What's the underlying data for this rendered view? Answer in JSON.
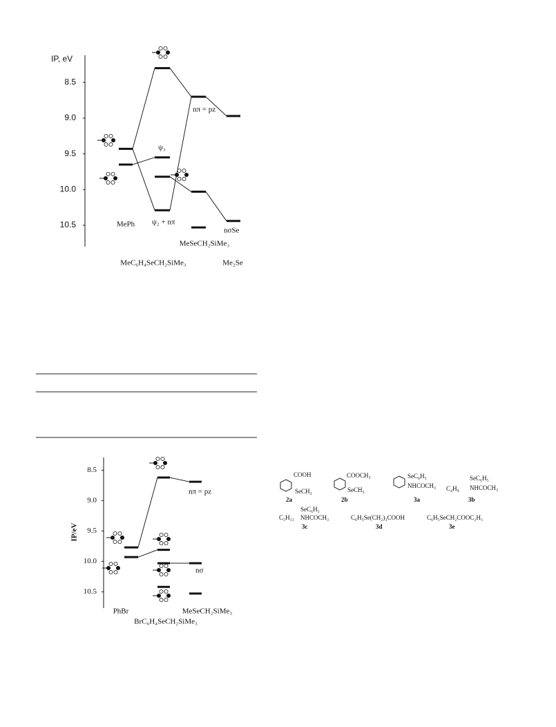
{
  "chart_data": [
    {
      "type": "energy-level",
      "y_label": "IP, eV",
      "ylim": [
        8.12,
        10.8
      ],
      "yticks": [
        8.5,
        {
          "value": 9,
          "label": "9.0"
        },
        9.5,
        {
          "value": 10,
          "label": "10.0"
        },
        10.5
      ],
      "series": [
        {
          "name": "MePh",
          "values": [
            9.43,
            9.65
          ]
        },
        {
          "name": "MeC₆H₄SeCH₂SiMe₃",
          "values": [
            8.3,
            9.55,
            9.82,
            10.29
          ]
        },
        {
          "name": "MeSeCH₂SiMe₃",
          "values": [
            8.7,
            10.03,
            10.53
          ]
        },
        {
          "name": "Me₂Se",
          "values": [
            8.97,
            10.44
          ]
        }
      ],
      "annotations": [
        "ψ₃",
        "ψ₂ + nπ",
        "nπ = pz",
        "nσSe"
      ]
    },
    {
      "type": "energy-level",
      "y_label": "IP/eV",
      "ylim": [
        8.29,
        10.77
      ],
      "yticks": [
        8.5,
        {
          "value": 9,
          "label": "9.0"
        },
        9.5,
        {
          "value": 10,
          "label": "10.0"
        },
        10.5
      ],
      "series": [
        {
          "name": "PhBr",
          "values": [
            9.77,
            9.93
          ]
        },
        {
          "name": "BrC₆H₄SeCH₂SiMe₃",
          "values": [
            8.62,
            9.81,
            10.03,
            10.42
          ]
        },
        {
          "name": "MeSeCH₂SiMe₃",
          "values": [
            8.69,
            10.03,
            10.53
          ]
        }
      ],
      "annotations": [
        "nπ = pz",
        "nσ"
      ]
    }
  ],
  "compounds": [
    {
      "groups": [
        "COOH",
        "SeCH₃"
      ],
      "label": "2a"
    },
    {
      "groups": [
        "COOCH₃",
        "SeCH₃"
      ],
      "label": "2b"
    },
    {
      "groups": [
        "SeC₆H₅",
        "NHCOCH₃"
      ],
      "label": "3a"
    },
    {
      "groups": [
        "SeC₆H₅",
        "C₄H₉",
        "NHCOCH₃"
      ],
      "label": "3b"
    },
    {
      "groups": [
        "SeC₆H₅",
        "C₅H₁₁",
        "NHCOCH₃"
      ],
      "label": "3c"
    },
    {
      "groups": [
        "C₆H₅Se(CH₂)₃COOH"
      ],
      "label": "3d"
    },
    {
      "groups": [
        "C₆H₅SeCH₂COOC₂H₅"
      ],
      "label": "3e"
    }
  ]
}
